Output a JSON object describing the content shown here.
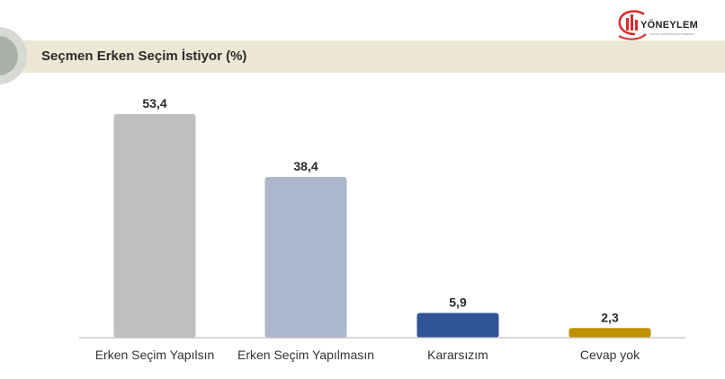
{
  "header": {
    "title": "Seçmen Erken Seçim İstiyor (%)",
    "logo_text": "YÖNEYLEM",
    "logo_subtext": "SOSYAL ARAŞTIRMALAR MERKEZİ"
  },
  "colors": {
    "header_band": "#ede8d6",
    "badge_accent": "#e02a2a",
    "logo_red": "#d92b2b"
  },
  "chart_data": {
    "type": "bar",
    "title": "Seçmen Erken Seçim İstiyor (%)",
    "categories": [
      "Erken Seçim Yapılsın",
      "Erken Seçim Yapılmasın",
      "Kararsızım",
      "Cevap yok"
    ],
    "values": [
      53.4,
      38.4,
      5.9,
      2.3
    ],
    "value_labels": [
      "53,4",
      "38,4",
      "5,9",
      "2,3"
    ],
    "colors": [
      "#bfbfbf",
      "#adb7cc",
      "#2f5597",
      "#bf9000"
    ],
    "xlabel": "",
    "ylabel": "",
    "ylim": [
      0,
      55
    ],
    "grid": false,
    "legend": "none"
  }
}
